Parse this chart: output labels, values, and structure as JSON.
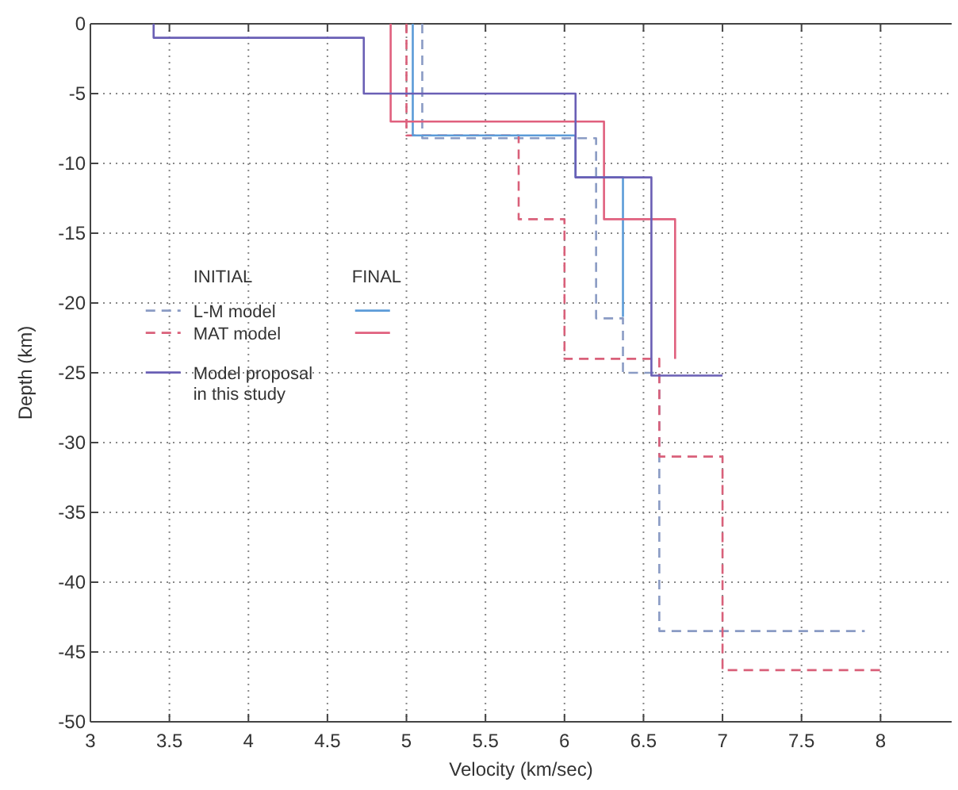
{
  "chart_data": {
    "type": "line",
    "xlabel": "Velocity (km/sec)",
    "ylabel": "Depth (km)",
    "xlim": [
      3,
      8.45
    ],
    "ylim": [
      -50,
      0
    ],
    "xticks": [
      3,
      3.5,
      4,
      4.5,
      5,
      5.5,
      6,
      6.5,
      7,
      7.5,
      8
    ],
    "yticks": [
      0,
      -5,
      -10,
      -15,
      -20,
      -25,
      -30,
      -35,
      -40,
      -45,
      -50
    ],
    "grid": true,
    "legend": "left",
    "annotations": [
      "INITIAL",
      "FINAL"
    ],
    "series": [
      {
        "name": "L-M model",
        "color": "#8a9bc4",
        "line_style": "dashed",
        "x": [
          5.1,
          5.1,
          6.2,
          6.2,
          6.37,
          6.37,
          6.6,
          6.6,
          7.9
        ],
        "values": [
          0,
          -8.2,
          -8.2,
          -21.1,
          -21.1,
          -25,
          -25,
          -43.5,
          -43.5
        ]
      },
      {
        "name": "MAT model",
        "color": "#d9607a",
        "line_style": "dashed",
        "x": [
          5.0,
          5.0,
          5.71,
          5.71,
          6.0,
          6.0,
          6.6,
          6.6,
          7.0,
          7.0,
          8.0
        ],
        "values": [
          0,
          -8,
          -8,
          -14,
          -14,
          -24,
          -24,
          -31,
          -31,
          -46.3,
          -46.3
        ]
      },
      {
        "color": "#5b9bd8",
        "line_style": "solid",
        "x": [
          5.04,
          5.04,
          6.07,
          6.07,
          6.37,
          6.37
        ],
        "values": [
          0,
          -8,
          -8,
          -11,
          -11,
          -21
        ]
      },
      {
        "color": "#e0607e",
        "line_style": "solid",
        "x": [
          4.9,
          4.9,
          6.25,
          6.25,
          6.7,
          6.7
        ],
        "values": [
          0,
          -7,
          -7,
          -14,
          -14,
          -24
        ]
      },
      {
        "name": "Model proposal in this study",
        "color": "#6a5fb5",
        "line_style": "solid",
        "x": [
          3.4,
          3.4,
          4.73,
          4.73,
          6.07,
          6.07,
          6.55,
          6.55,
          7.0
        ],
        "values": [
          0,
          -1,
          -1,
          -5,
          -5,
          -11,
          -11,
          -25.2,
          -25.2
        ]
      }
    ]
  }
}
